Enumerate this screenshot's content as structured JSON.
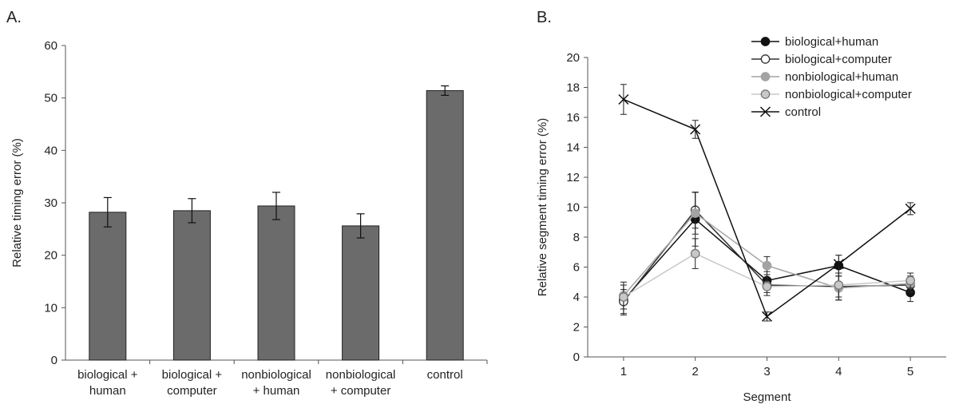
{
  "panels": {
    "a": "A.",
    "b": "B."
  },
  "chart_data": [
    {
      "type": "bar",
      "title": "",
      "xlabel": "",
      "ylabel": "Relative timing error (%)",
      "ylim": [
        0,
        60
      ],
      "yticks": [
        0,
        10,
        20,
        30,
        40,
        50,
        60
      ],
      "categories": [
        [
          "biological +",
          "human"
        ],
        [
          "biological +",
          "computer"
        ],
        [
          "nonbiological",
          "+ human"
        ],
        [
          "nonbiological",
          "+ computer"
        ],
        [
          "control"
        ]
      ],
      "values": [
        28.2,
        28.5,
        29.4,
        25.6,
        51.4
      ],
      "errors": [
        2.8,
        2.3,
        2.6,
        2.3,
        0.9
      ],
      "bar_color": "#6b6b6b",
      "grid": false
    },
    {
      "type": "line",
      "title": "",
      "xlabel": "Segment",
      "ylabel": "Relative segment timing error (%)",
      "x": [
        1,
        2,
        3,
        4,
        5
      ],
      "xlim": [
        0.5,
        5.5
      ],
      "ylim": [
        0,
        20
      ],
      "yticks": [
        0,
        2,
        4,
        6,
        8,
        10,
        12,
        14,
        16,
        18,
        20
      ],
      "grid": false,
      "legend": "top-right",
      "series": [
        {
          "name": "biological+human",
          "values": [
            3.8,
            9.2,
            5.1,
            6.1,
            4.3
          ],
          "errors": [
            1.0,
            1.8,
            0.6,
            0.7,
            0.6
          ],
          "color": "#111111",
          "marker": "filled-circle"
        },
        {
          "name": "biological+computer",
          "values": [
            3.7,
            9.8,
            4.8,
            4.7,
            4.8
          ],
          "errors": [
            0.8,
            1.2,
            0.5,
            0.9,
            0.5
          ],
          "color": "#333333",
          "marker": "open-circle"
        },
        {
          "name": "nonbiological+human",
          "values": [
            4.1,
            9.6,
            6.1,
            4.6,
            4.9
          ],
          "errors": [
            0.9,
            1.4,
            0.6,
            0.8,
            0.5
          ],
          "color": "#a3a3a3",
          "marker": "filled-circle"
        },
        {
          "name": "nonbiological+computer",
          "values": [
            4.0,
            6.9,
            4.7,
            4.8,
            5.1
          ],
          "errors": [
            0.8,
            1.0,
            0.6,
            0.8,
            0.5
          ],
          "color": "#c8c8c8",
          "marker": "grey-circle"
        },
        {
          "name": "control",
          "values": [
            17.2,
            15.2,
            2.7,
            6.2,
            9.9
          ],
          "errors": [
            1.0,
            0.6,
            0.3,
            0.6,
            0.4
          ],
          "color": "#111111",
          "marker": "x"
        }
      ]
    }
  ]
}
